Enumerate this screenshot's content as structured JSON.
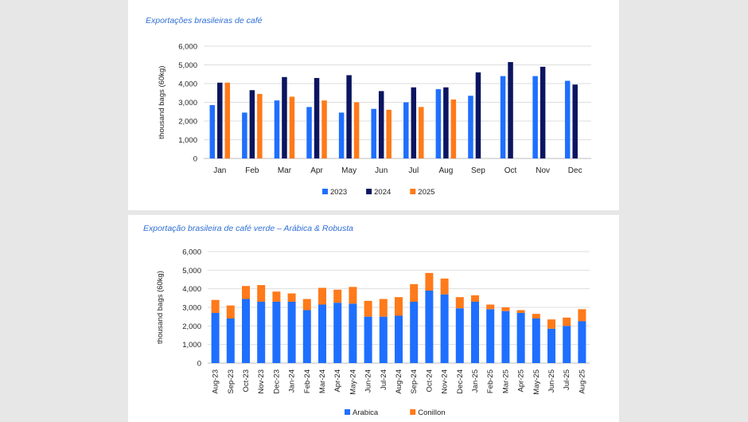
{
  "charts": [
    {
      "title": "Exportações brasileiras de café",
      "chart_data": {
        "type": "bar",
        "ylabel": "thousand bags (60kg)",
        "ylim": [
          0,
          6000
        ],
        "yticks": [
          0,
          1000,
          2000,
          3000,
          4000,
          5000,
          6000
        ],
        "ytick_labels": [
          "0",
          "1,000",
          "2,000",
          "3,000",
          "4,000",
          "5,000",
          "6,000"
        ],
        "grid": true,
        "legend_position": "bottom",
        "categories": [
          "Jan",
          "Feb",
          "Mar",
          "Apr",
          "May",
          "Jun",
          "Jul",
          "Aug",
          "Sep",
          "Oct",
          "Nov",
          "Dec"
        ],
        "series": [
          {
            "name": "2023",
            "color": "#1f6fff",
            "values": [
              2850,
              2450,
              3100,
              2750,
              2450,
              2650,
              3000,
              3700,
              3350,
              4400,
              4400,
              4150
            ]
          },
          {
            "name": "2024",
            "color": "#0b1560",
            "values": [
              4050,
              3650,
              4350,
              4300,
              4450,
              3600,
              3800,
              3800,
              4600,
              5150,
              4900,
              3950
            ]
          },
          {
            "name": "2025",
            "color": "#ff7a1a",
            "values": [
              4050,
              3450,
              3300,
              3100,
              3000,
              2600,
              2750,
              3150,
              null,
              null,
              null,
              null
            ]
          }
        ]
      }
    },
    {
      "title": "Exportação brasileira de café verde – Arábica & Robusta",
      "chart_data": {
        "type": "bar",
        "stacked": true,
        "ylabel": "thousand bags (60kg)",
        "ylim": [
          0,
          6000
        ],
        "yticks": [
          0,
          1000,
          2000,
          3000,
          4000,
          5000,
          6000
        ],
        "ytick_labels": [
          "0",
          "1,000",
          "2,000",
          "3,000",
          "4,000",
          "5,000",
          "6,000"
        ],
        "grid": true,
        "legend_position": "bottom",
        "categories": [
          "Aug-23",
          "Sep-23",
          "Oct-23",
          "Nov-23",
          "Dec-23",
          "Jan-24",
          "Feb-24",
          "Mar-24",
          "Apr-24",
          "May-24",
          "Jun-24",
          "Jul-24",
          "Aug-24",
          "Sep-24",
          "Oct-24",
          "Nov-24",
          "Dec-24",
          "Jan-25",
          "Feb-25",
          "Mar-25",
          "Apr-25",
          "May-25",
          "Jun-25",
          "Jul-25",
          "Aug-25"
        ],
        "series": [
          {
            "name": "Arabica",
            "color": "#1f6fff",
            "values": [
              2700,
              2400,
              3450,
              3300,
              3300,
              3300,
              2850,
              3150,
              3250,
              3200,
              2500,
              2500,
              2550,
              3300,
              3900,
              3700,
              2950,
              3300,
              2900,
              2800,
              2700,
              2400,
              1850,
              2000,
              2250
            ]
          },
          {
            "name": "Conillon",
            "color": "#ff7a1a",
            "values": [
              700,
              700,
              700,
              900,
              550,
              450,
              600,
              900,
              700,
              900,
              850,
              950,
              1000,
              950,
              950,
              850,
              600,
              350,
              250,
              200,
              150,
              250,
              500,
              450,
              650
            ]
          }
        ]
      }
    }
  ]
}
